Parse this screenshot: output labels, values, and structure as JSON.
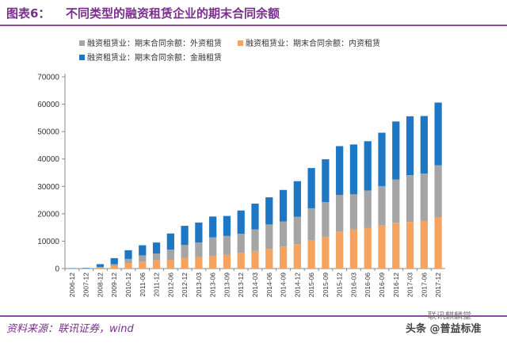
{
  "header": {
    "figure_label": "图表6：",
    "title": "不同类型的融资租赁企业的期末合同余额"
  },
  "footer": {
    "source": "资料来源：联讯证券，wind"
  },
  "watermark": {
    "text": "头条 @普益标准",
    "overlay": "联讯麒麟堂"
  },
  "colors": {
    "domestic": "#F4A460",
    "foreign": "#A5A5A5",
    "financial": "#1F77C4",
    "accent": "#7A2F8C"
  },
  "chart_data": {
    "type": "bar",
    "stacked": true,
    "categories": [
      "2006-12",
      "2007-12",
      "2008-12",
      "2009-12",
      "2010-12",
      "2011-06",
      "2011-12",
      "2012-06",
      "2012-12",
      "2013-03",
      "2013-06",
      "2013-09",
      "2013-12",
      "2014-03",
      "2014-06",
      "2014-09",
      "2014-12",
      "2015-06",
      "2015-09",
      "2015-12",
      "2016-03",
      "2016-06",
      "2016-09",
      "2016-12",
      "2017-03",
      "2017-06",
      "2017-12"
    ],
    "series": [
      {
        "name": "融资租赁业：期末合同余额：内资租赁",
        "color_key": "domestic",
        "values": [
          0,
          0,
          300,
          1000,
          2000,
          2500,
          3000,
          3200,
          3900,
          4200,
          4600,
          5100,
          5700,
          6400,
          7200,
          8000,
          8900,
          10400,
          11500,
          13500,
          14300,
          14900,
          15800,
          16700,
          17000,
          17500,
          18800
        ]
      },
      {
        "name": "融资租赁业：期末合同余额：外资租赁",
        "color_key": "foreign",
        "values": [
          0,
          0,
          300,
          600,
          1500,
          2300,
          2500,
          3700,
          4700,
          5300,
          6800,
          6800,
          7000,
          7900,
          8900,
          9200,
          10000,
          11600,
          12800,
          13400,
          12800,
          13600,
          14300,
          15800,
          17100,
          17200,
          18900
        ]
      },
      {
        "name": "融资租赁业：期末合同余额：金融租赁",
        "color_key": "financial",
        "values": [
          100,
          200,
          1000,
          2200,
          3200,
          3700,
          4000,
          5900,
          7000,
          7300,
          7600,
          7300,
          8500,
          9400,
          9900,
          11500,
          13000,
          14700,
          15600,
          17800,
          18200,
          18000,
          19500,
          21200,
          21500,
          21000,
          22900
        ]
      }
    ],
    "ylim": [
      0,
      70000
    ],
    "yticks": [
      0,
      10000,
      20000,
      30000,
      40000,
      50000,
      60000,
      70000
    ],
    "ytick_labels": [
      "0",
      "10000",
      "20000",
      "30000",
      "40000",
      "50000",
      "60000",
      "70000"
    ],
    "xlabel": "",
    "ylabel": "",
    "legend_position": "top-left",
    "legend_order": [
      "融资租赁业：期末合同余额：外资租赁",
      "融资租赁业：期末合同余额：内资租赁",
      "融资租赁业：期末合同余额：金融租赁"
    ],
    "grid": false
  }
}
